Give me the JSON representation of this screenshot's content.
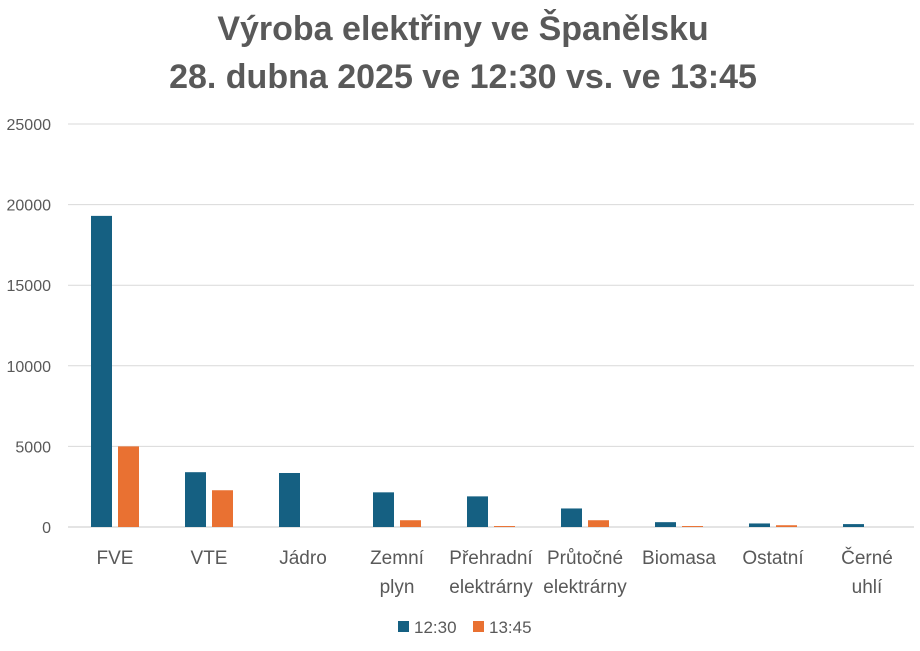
{
  "chart_data": {
    "type": "bar",
    "title": "Výroba elektřiny ve Španělsku",
    "subtitle": "28. dubna 2025 ve 12:30 vs. ve 13:45",
    "categories": [
      [
        "FVE"
      ],
      [
        "VTE"
      ],
      [
        "Jádro"
      ],
      [
        "Zemní",
        "plyn"
      ],
      [
        "Přehradní",
        "elektrárny"
      ],
      [
        "Průtočné",
        "elektrárny"
      ],
      [
        "Biomasa"
      ],
      [
        "Ostatní"
      ],
      [
        "Černé",
        "uhlí"
      ]
    ],
    "series": [
      {
        "name": "12:30",
        "color": "#156082",
        "values": [
          19300,
          3400,
          3350,
          2150,
          1900,
          1150,
          300,
          220,
          180
        ]
      },
      {
        "name": "13:45",
        "color": "#E97132",
        "values": [
          5000,
          2280,
          0,
          420,
          60,
          420,
          60,
          110,
          0
        ]
      }
    ],
    "ylim": [
      0,
      25000
    ],
    "yticks": [
      0,
      5000,
      10000,
      15000,
      20000,
      25000
    ],
    "grid": true,
    "legend": "bottom"
  }
}
